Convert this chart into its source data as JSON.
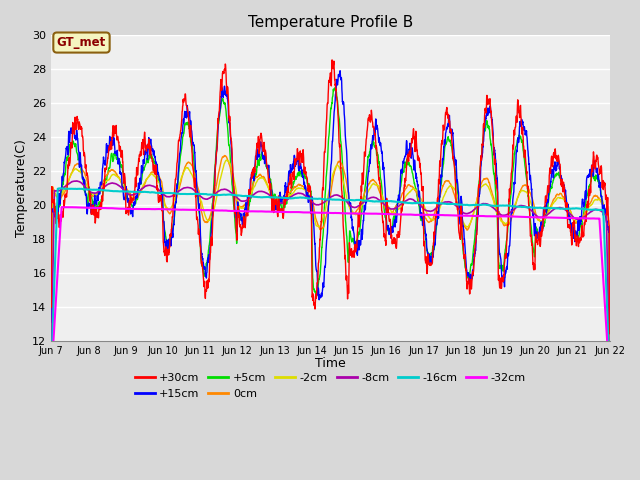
{
  "title": "Temperature Profile B",
  "xlabel": "Time",
  "ylabel": "Temperature(C)",
  "annotation": "GT_met",
  "ylim": [
    12,
    30
  ],
  "yticks": [
    12,
    14,
    16,
    18,
    20,
    22,
    24,
    26,
    28,
    30
  ],
  "xtick_labels": [
    "Jun 7",
    "Jun 8",
    "Jun 9",
    "Jun 10",
    "Jun 11",
    "Jun 12",
    "Jun 13",
    "Jun 14",
    "Jun 15",
    "Jun 16",
    "Jun 17",
    "Jun 18",
    "Jun 19",
    "Jun 20",
    "Jun 21",
    "Jun 22"
  ],
  "series_colors": {
    "+30cm": "#ff0000",
    "+15cm": "#0000ff",
    "+5cm": "#00dd00",
    "0cm": "#ff8800",
    "-2cm": "#dddd00",
    "-8cm": "#aa00aa",
    "-16cm": "#00cccc",
    "-32cm": "#ff00ff"
  },
  "fig_width": 6.4,
  "fig_height": 4.8,
  "dpi": 100
}
